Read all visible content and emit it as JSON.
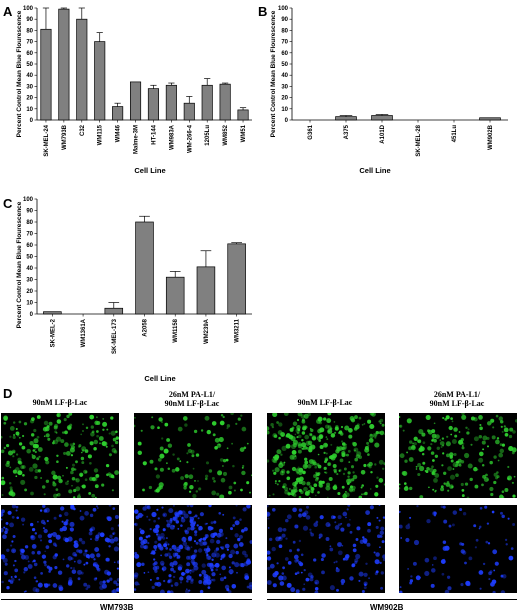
{
  "panel_letters": {
    "a": "A",
    "b": "B",
    "c": "C",
    "d": "D"
  },
  "chart_data": [
    {
      "panel": "A",
      "type": "bar",
      "ylabel": "Percent Control  Mean Blue Flourescence",
      "xlabel": "Cell Line",
      "ylim": [
        0,
        100
      ],
      "yticks": [
        0,
        10,
        20,
        30,
        40,
        50,
        60,
        70,
        80,
        90,
        100
      ],
      "categories": [
        "SK-MEL-24",
        "WM793B",
        "C32",
        "WM115",
        "WM46",
        "Malme-3M",
        "HT-144",
        "WM983A",
        "WM-266-4",
        "1205Lu",
        "WM852",
        "WM51"
      ],
      "values": [
        81,
        99,
        90,
        70,
        12,
        34,
        28,
        31,
        15,
        31,
        32,
        9
      ],
      "errors": [
        19,
        1,
        10,
        8,
        3,
        0,
        3,
        2,
        6,
        6,
        1,
        2
      ]
    },
    {
      "panel": "B",
      "type": "bar",
      "ylabel": "Percent Control  Mean Blue Flourescence",
      "xlabel": "Cell Line",
      "ylim": [
        0,
        100
      ],
      "yticks": [
        0,
        10,
        20,
        30,
        40,
        50,
        60,
        70,
        80,
        90,
        100
      ],
      "categories": [
        "G361",
        "A375",
        "A101D",
        "SK-MEL-28",
        "451Lu",
        "WM902B"
      ],
      "values": [
        0,
        3,
        4,
        0,
        0,
        2
      ],
      "errors": [
        0,
        1,
        1,
        0,
        0,
        0
      ]
    },
    {
      "panel": "C",
      "type": "bar",
      "ylabel": "Percent Control  Mean Blue Flourescence",
      "xlabel": "Cell Line",
      "ylim": [
        0,
        100
      ],
      "yticks": [
        0,
        10,
        20,
        30,
        40,
        50,
        60,
        70,
        80,
        90,
        100
      ],
      "categories": [
        "SK-MEL-2",
        "WM1361A",
        "SK-MEL-173",
        "A2058",
        "WM1158",
        "WM239A",
        "WM3211"
      ],
      "values": [
        2,
        0,
        5,
        80,
        32,
        41,
        61
      ],
      "errors": [
        0,
        0,
        5,
        5,
        5,
        14,
        1
      ]
    }
  ],
  "micrographs": {
    "col_labels": [
      {
        "line1": "90nM LF-β-Lac",
        "line2": ""
      },
      {
        "line1": "26nM PA-L1/",
        "line2": "90nM LF-β-Lac"
      },
      {
        "line1": "90nM LF-β-Lac",
        "line2": ""
      },
      {
        "line1": "26nM PA-L1/",
        "line2": "90nM LF-β-Lac"
      }
    ],
    "group_labels": [
      "WM793B",
      "WM902B"
    ],
    "colors": {
      "green": "#2fd12f",
      "blue": "#1e3dff",
      "background": "#000000"
    },
    "densities": {
      "green": [
        0.45,
        0.18,
        0.95,
        0.4
      ],
      "blue": [
        0.45,
        0.95,
        0.3,
        0.12
      ]
    }
  }
}
